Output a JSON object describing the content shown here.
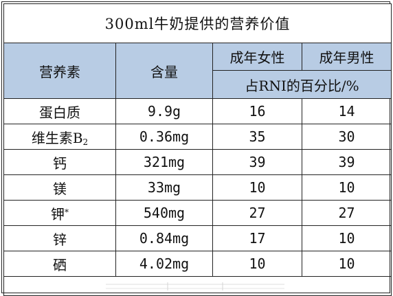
{
  "title": "300ml牛奶提供的营养价值",
  "headers": {
    "nutrient": "营养素",
    "content": "含量",
    "female": "成年女性",
    "male": "成年男性",
    "rni": "占RNI的百分比/%"
  },
  "rows": [
    {
      "name": "蛋白质",
      "sub": "",
      "sup": "",
      "amount": "9.9g",
      "female": "16",
      "male": "14"
    },
    {
      "name": "维生素B",
      "sub": "2",
      "sup": "",
      "amount": "0.36mg",
      "female": "35",
      "male": "30"
    },
    {
      "name": "钙",
      "sub": "",
      "sup": "",
      "amount": "321mg",
      "female": "39",
      "male": "39"
    },
    {
      "name": "镁",
      "sub": "",
      "sup": "",
      "amount": "33mg",
      "female": "10",
      "male": "10"
    },
    {
      "name": "钾",
      "sub": "",
      "sup": "*",
      "amount": "540mg",
      "female": "27",
      "male": "27"
    },
    {
      "name": "锌",
      "sub": "",
      "sup": "",
      "amount": "0.84mg",
      "female": "17",
      "male": "10"
    },
    {
      "name": "硒",
      "sub": "",
      "sup": "",
      "amount": "4.02mg",
      "female": "10",
      "male": "10"
    }
  ],
  "colors": {
    "header_bg": "#b8cce4",
    "border": "#222222"
  }
}
